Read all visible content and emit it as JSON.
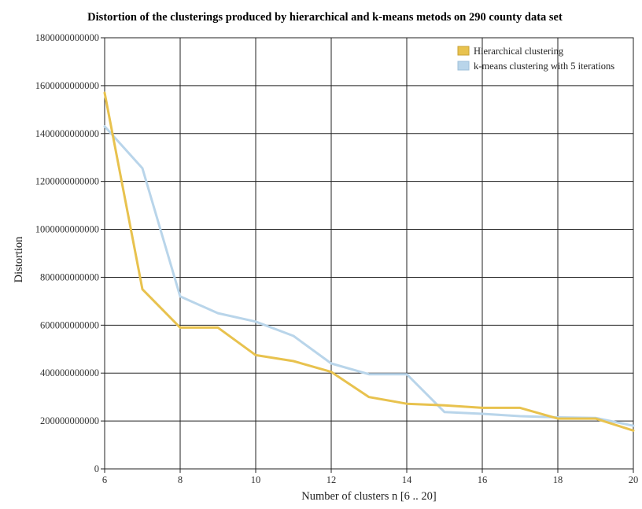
{
  "chart_data": {
    "type": "line",
    "title": "Distortion of the clusterings produced by hierarchical and k-means metods on 290 county data set",
    "xlabel": "Number of clusters n [6 .. 20]",
    "ylabel": "Distortion",
    "xlim": [
      6,
      20
    ],
    "ylim": [
      0,
      1800000000000
    ],
    "x_ticks": [
      "6",
      "8",
      "10",
      "12",
      "14",
      "16",
      "18",
      "20"
    ],
    "y_ticks": [
      "0",
      "200000000000",
      "400000000000",
      "600000000000",
      "800000000000",
      "1000000000000",
      "1200000000000",
      "1400000000000",
      "1600000000000",
      "1800000000000"
    ],
    "grid": true,
    "legend_position": "top-right",
    "x": [
      6,
      7,
      8,
      9,
      10,
      11,
      12,
      13,
      14,
      15,
      16,
      17,
      18,
      19,
      20
    ],
    "series": [
      {
        "name": "Hierarchical clustering",
        "color": "#e8c24e",
        "values": [
          1570000000000,
          750000000000,
          590000000000,
          590000000000,
          475000000000,
          450000000000,
          405000000000,
          300000000000,
          272000000000,
          265000000000,
          255000000000,
          255000000000,
          210000000000,
          210000000000,
          160000000000
        ]
      },
      {
        "name": "k-means clustering with 5 iterations",
        "color": "#b9d5ea",
        "values": [
          1430000000000,
          1255000000000,
          720000000000,
          650000000000,
          615000000000,
          555000000000,
          440000000000,
          395000000000,
          395000000000,
          237000000000,
          230000000000,
          220000000000,
          215000000000,
          213000000000,
          180000000000
        ]
      }
    ]
  }
}
